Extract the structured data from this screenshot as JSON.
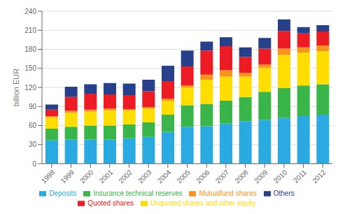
{
  "chart_data": {
    "type": "bar",
    "stacked": true,
    "grid": true,
    "legend": "bottom",
    "ylabel": "billion EUR",
    "categories": [
      "1998",
      "1999",
      "2000",
      "2001",
      "2002",
      "2003",
      "2004",
      "2005",
      "2006",
      "2007",
      "2008",
      "2009",
      "2010",
      "2011",
      "2012"
    ],
    "series": [
      {
        "name": "Deposits",
        "color": "#29abe2",
        "values": [
          37,
          38,
          38,
          38,
          40,
          42,
          50,
          58,
          59,
          63,
          67,
          69,
          72,
          75,
          77
        ]
      },
      {
        "name": "Insurance technical reserves",
        "color": "#39b54a",
        "values": [
          18,
          20,
          22,
          22,
          22,
          23,
          27,
          34,
          35,
          36,
          38,
          44,
          47,
          48,
          48
        ]
      },
      {
        "name": "Unquoted shares and other equity",
        "color": "#ffdd00",
        "values": [
          18,
          22,
          22,
          24,
          22,
          22,
          22,
          28,
          38,
          38,
          32,
          38,
          52,
          52,
          52
        ]
      },
      {
        "name": "Mutualfund shares",
        "color": "#f7941d",
        "values": [
          2,
          3,
          3,
          3,
          2,
          2,
          3,
          3,
          8,
          10,
          6,
          5,
          10,
          8,
          9
        ]
      },
      {
        "name": "Quoted shares",
        "color": "#ed1c24",
        "values": [
          10,
          22,
          25,
          22,
          22,
          25,
          28,
          30,
          38,
          38,
          25,
          25,
          28,
          22,
          22
        ]
      },
      {
        "name": "Others",
        "color": "#27408b",
        "values": [
          8,
          16,
          15,
          18,
          18,
          18,
          24,
          25,
          14,
          14,
          15,
          17,
          18,
          10,
          10
        ]
      }
    ],
    "ylim": [
      0,
      240
    ],
    "yticks": [
      0,
      30,
      60,
      90,
      120,
      150,
      180,
      210,
      240
    ]
  }
}
